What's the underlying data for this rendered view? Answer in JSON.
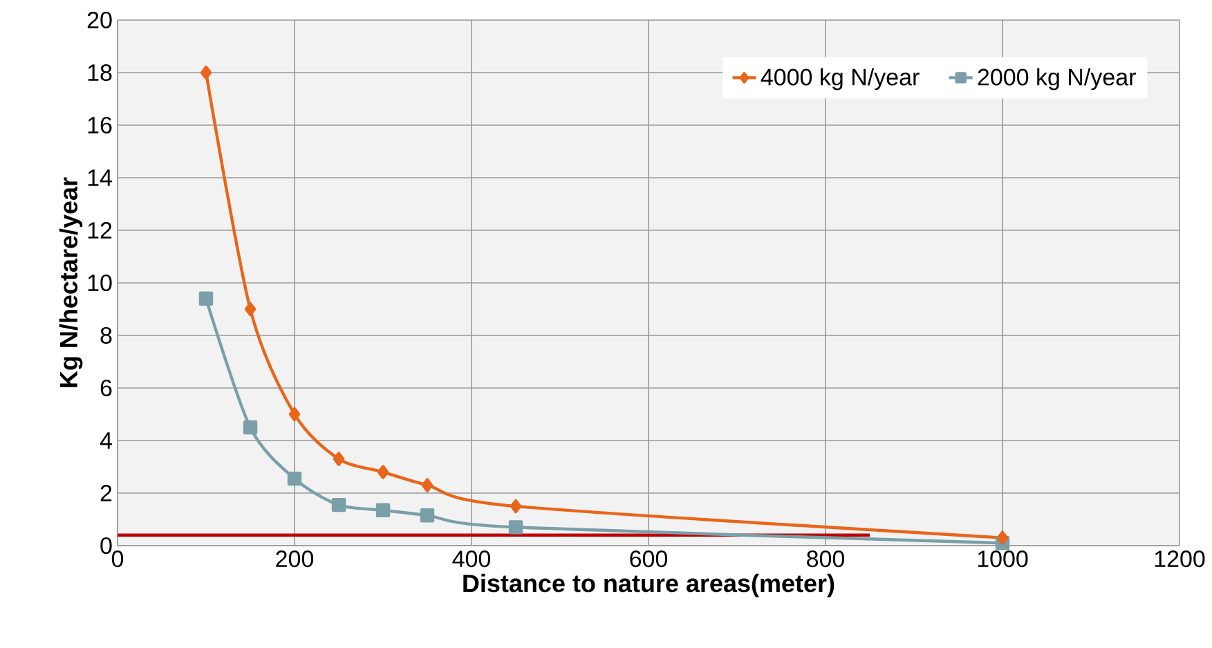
{
  "chart_data": {
    "type": "line",
    "xlabel": "Distance to nature areas(meter)",
    "ylabel": "Kg N/hectare/year",
    "xlim": [
      0,
      1200
    ],
    "ylim": [
      0,
      20
    ],
    "xticks": [
      0,
      200,
      400,
      600,
      800,
      1000,
      1200
    ],
    "yticks": [
      0,
      2,
      4,
      6,
      8,
      10,
      12,
      14,
      16,
      18,
      20
    ],
    "grid": true,
    "legend": "top right",
    "series": [
      {
        "name": "4000 kg N/year",
        "color": "#e8651a",
        "marker": "diamond",
        "x": [
          100,
          150,
          200,
          250,
          300,
          350,
          450,
          1000
        ],
        "values": [
          18,
          9,
          5,
          3.3,
          2.8,
          2.3,
          1.5,
          0.3
        ]
      },
      {
        "name": "2000 kg N/year",
        "color": "#7a9fa8",
        "marker": "square",
        "x": [
          100,
          150,
          200,
          250,
          300,
          350,
          450,
          1000
        ],
        "values": [
          9.4,
          4.5,
          2.55,
          1.55,
          1.35,
          1.15,
          0.7,
          0.1
        ]
      },
      {
        "color": "#c00000",
        "marker": "none",
        "x": [
          0,
          850
        ],
        "values": [
          0.4,
          0.4
        ]
      }
    ]
  }
}
